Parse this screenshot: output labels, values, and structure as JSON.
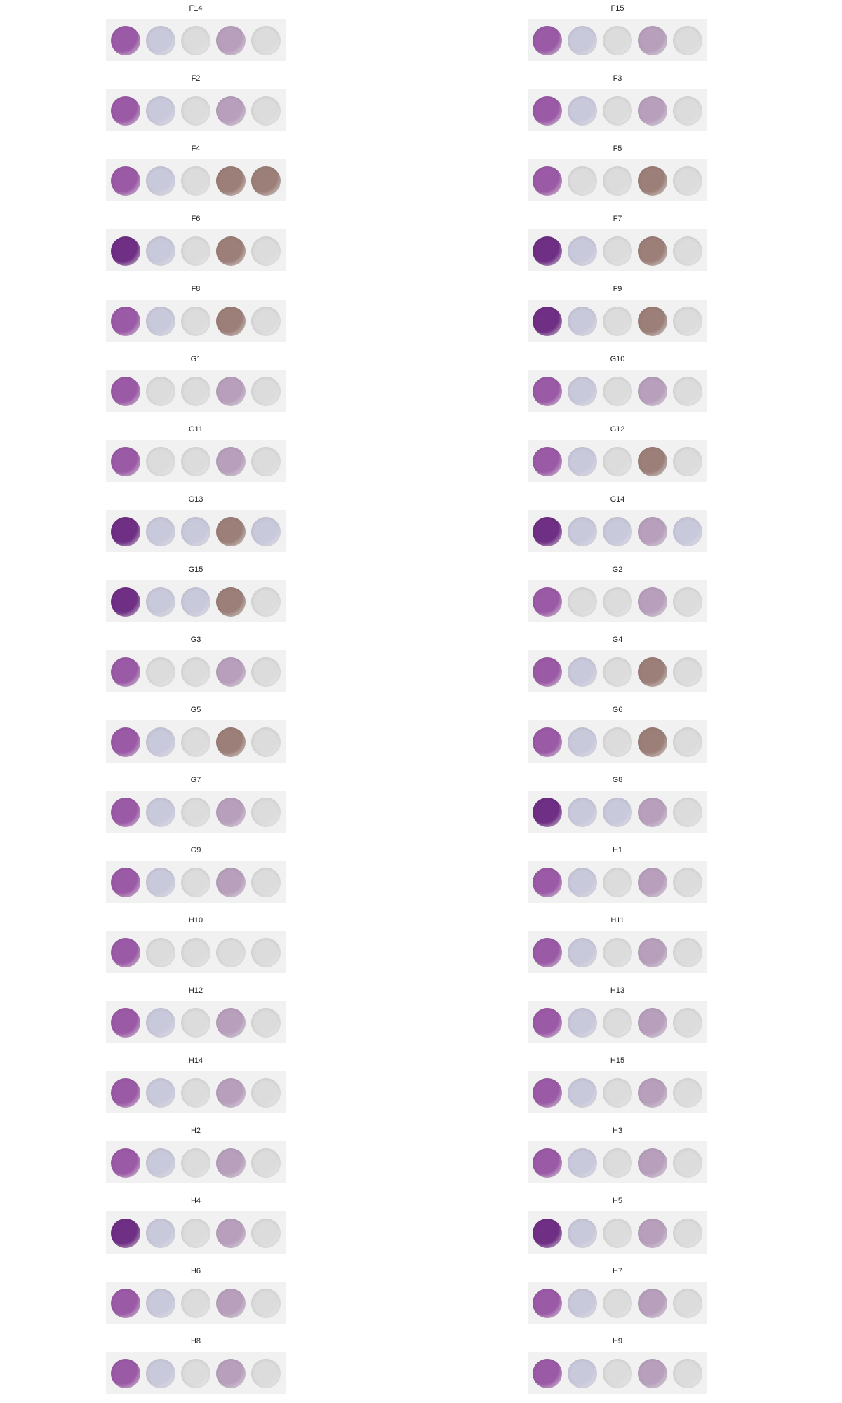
{
  "stain_colors": {
    "he": "#9b5aa6",
    "he_dark": "#6f2f84",
    "ihc_faint": "#c9c9dc",
    "ihc_light": "#dcdcdc",
    "ihc_brown": "#9c7f78",
    "ihc_purple": "#b8a0bd"
  },
  "panels": [
    {
      "label": "F14",
      "cores": [
        "he",
        "ihc_faint",
        "ihc_light",
        "ihc_purple",
        "ihc_light"
      ]
    },
    {
      "label": "F15",
      "cores": [
        "he",
        "ihc_faint",
        "ihc_light",
        "ihc_purple",
        "ihc_light"
      ]
    },
    {
      "label": "F2",
      "cores": [
        "he",
        "ihc_faint",
        "ihc_light",
        "ihc_purple",
        "ihc_light"
      ]
    },
    {
      "label": "F3",
      "cores": [
        "he",
        "ihc_faint",
        "ihc_light",
        "ihc_purple",
        "ihc_light"
      ]
    },
    {
      "label": "F4",
      "cores": [
        "he",
        "ihc_faint",
        "ihc_light",
        "ihc_brown",
        "ihc_brown"
      ]
    },
    {
      "label": "F5",
      "cores": [
        "he",
        "ihc_light",
        "ihc_light",
        "ihc_brown",
        "ihc_light"
      ]
    },
    {
      "label": "F6",
      "cores": [
        "he_dark",
        "ihc_faint",
        "ihc_light",
        "ihc_brown",
        "ihc_light"
      ]
    },
    {
      "label": "F7",
      "cores": [
        "he_dark",
        "ihc_faint",
        "ihc_light",
        "ihc_brown",
        "ihc_light"
      ]
    },
    {
      "label": "F8",
      "cores": [
        "he",
        "ihc_faint",
        "ihc_light",
        "ihc_brown",
        "ihc_light"
      ]
    },
    {
      "label": "F9",
      "cores": [
        "he_dark",
        "ihc_faint",
        "ihc_light",
        "ihc_brown",
        "ihc_light"
      ]
    },
    {
      "label": "G1",
      "cores": [
        "he",
        "ihc_light",
        "ihc_light",
        "ihc_purple",
        "ihc_light"
      ]
    },
    {
      "label": "G10",
      "cores": [
        "he",
        "ihc_faint",
        "ihc_light",
        "ihc_purple",
        "ihc_light"
      ]
    },
    {
      "label": "G11",
      "cores": [
        "he",
        "ihc_light",
        "ihc_light",
        "ihc_purple",
        "ihc_light"
      ]
    },
    {
      "label": "G12",
      "cores": [
        "he",
        "ihc_faint",
        "ihc_light",
        "ihc_brown",
        "ihc_light"
      ]
    },
    {
      "label": "G13",
      "cores": [
        "he_dark",
        "ihc_faint",
        "ihc_faint",
        "ihc_brown",
        "ihc_faint"
      ]
    },
    {
      "label": "G14",
      "cores": [
        "he_dark",
        "ihc_faint",
        "ihc_faint",
        "ihc_purple",
        "ihc_faint"
      ]
    },
    {
      "label": "G15",
      "cores": [
        "he_dark",
        "ihc_faint",
        "ihc_faint",
        "ihc_brown",
        "ihc_light"
      ]
    },
    {
      "label": "G2",
      "cores": [
        "he",
        "ihc_light",
        "ihc_light",
        "ihc_purple",
        "ihc_light"
      ]
    },
    {
      "label": "G3",
      "cores": [
        "he",
        "ihc_light",
        "ihc_light",
        "ihc_purple",
        "ihc_light"
      ]
    },
    {
      "label": "G4",
      "cores": [
        "he",
        "ihc_faint",
        "ihc_light",
        "ihc_brown",
        "ihc_light"
      ]
    },
    {
      "label": "G5",
      "cores": [
        "he",
        "ihc_faint",
        "ihc_light",
        "ihc_brown",
        "ihc_light"
      ]
    },
    {
      "label": "G6",
      "cores": [
        "he",
        "ihc_faint",
        "ihc_light",
        "ihc_brown",
        "ihc_light"
      ]
    },
    {
      "label": "G7",
      "cores": [
        "he",
        "ihc_faint",
        "ihc_light",
        "ihc_purple",
        "ihc_light"
      ]
    },
    {
      "label": "G8",
      "cores": [
        "he_dark",
        "ihc_faint",
        "ihc_faint",
        "ihc_purple",
        "ihc_light"
      ]
    },
    {
      "label": "G9",
      "cores": [
        "he",
        "ihc_faint",
        "ihc_light",
        "ihc_purple",
        "ihc_light"
      ]
    },
    {
      "label": "H1",
      "cores": [
        "he",
        "ihc_faint",
        "ihc_light",
        "ihc_purple",
        "ihc_light"
      ]
    },
    {
      "label": "H10",
      "cores": [
        "he",
        "ihc_light",
        "ihc_light",
        "ihc_light",
        "ihc_light"
      ]
    },
    {
      "label": "H11",
      "cores": [
        "he",
        "ihc_faint",
        "ihc_light",
        "ihc_purple",
        "ihc_light"
      ]
    },
    {
      "label": "H12",
      "cores": [
        "he",
        "ihc_faint",
        "ihc_light",
        "ihc_purple",
        "ihc_light"
      ]
    },
    {
      "label": "H13",
      "cores": [
        "he",
        "ihc_faint",
        "ihc_light",
        "ihc_purple",
        "ihc_light"
      ]
    },
    {
      "label": "H14",
      "cores": [
        "he",
        "ihc_faint",
        "ihc_light",
        "ihc_purple",
        "ihc_light"
      ]
    },
    {
      "label": "H15",
      "cores": [
        "he",
        "ihc_faint",
        "ihc_light",
        "ihc_purple",
        "ihc_light"
      ]
    },
    {
      "label": "H2",
      "cores": [
        "he",
        "ihc_faint",
        "ihc_light",
        "ihc_purple",
        "ihc_light"
      ]
    },
    {
      "label": "H3",
      "cores": [
        "he",
        "ihc_faint",
        "ihc_light",
        "ihc_purple",
        "ihc_light"
      ]
    },
    {
      "label": "H4",
      "cores": [
        "he_dark",
        "ihc_faint",
        "ihc_light",
        "ihc_purple",
        "ihc_light"
      ]
    },
    {
      "label": "H5",
      "cores": [
        "he_dark",
        "ihc_faint",
        "ihc_light",
        "ihc_purple",
        "ihc_light"
      ]
    },
    {
      "label": "H6",
      "cores": [
        "he",
        "ihc_faint",
        "ihc_light",
        "ihc_purple",
        "ihc_light"
      ]
    },
    {
      "label": "H7",
      "cores": [
        "he",
        "ihc_faint",
        "ihc_light",
        "ihc_purple",
        "ihc_light"
      ]
    },
    {
      "label": "H8",
      "cores": [
        "he",
        "ihc_faint",
        "ihc_light",
        "ihc_purple",
        "ihc_light"
      ]
    },
    {
      "label": "H9",
      "cores": [
        "he",
        "ihc_faint",
        "ihc_light",
        "ihc_purple",
        "ihc_light"
      ]
    }
  ]
}
